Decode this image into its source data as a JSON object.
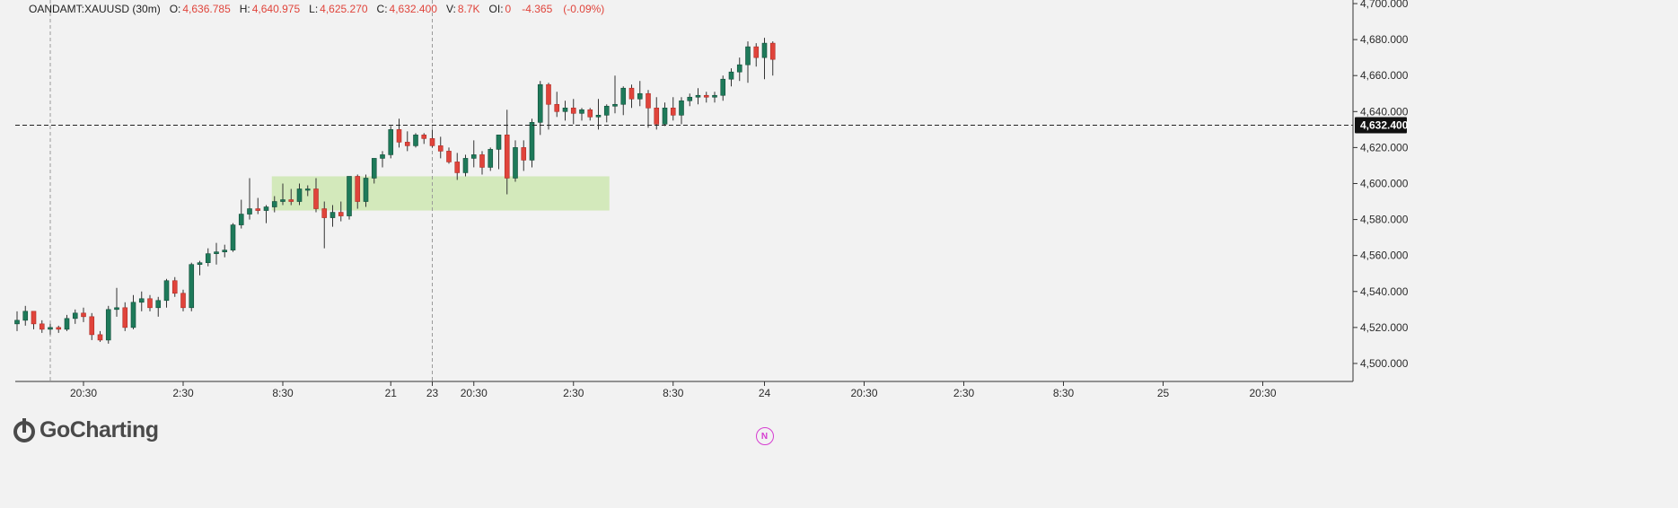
{
  "header": {
    "symbol": "OANDAMT:XAUUSD (30m)",
    "open_label": "O:",
    "open_value": "4,636.785",
    "high_label": "H:",
    "high_value": "4,640.975",
    "low_label": "L:",
    "low_value": "4,625.270",
    "close_label": "C:",
    "close_value": "4,632.400",
    "volume_label": "V:",
    "volume_value": "8.7K",
    "oi_label": "OI:",
    "oi_value": "0",
    "change_value": "-4.365",
    "change_pct": "(-0.09%)"
  },
  "logo": {
    "text": "GoCharting"
  },
  "last_price_label": "4,632.400",
  "event_marker": {
    "label": "N"
  },
  "colors": {
    "background": "#f2f2f2",
    "up": "#1e7a5a",
    "down": "#e0443b",
    "wick": "#333333",
    "zone": "#c8e6a8",
    "price_tag_bg": "#111111",
    "event_marker": "#d63dd1"
  },
  "chart_data": {
    "type": "candlestick",
    "title": "OANDAMT:XAUUSD (30m)",
    "ylim": [
      4490,
      4702
    ],
    "y_ticks": [
      "4,500.000",
      "4,520.000",
      "4,540.000",
      "4,560.000",
      "4,580.000",
      "4,600.000",
      "4,620.000",
      "4,640.000",
      "4,660.000",
      "4,680.000",
      "4,700.000"
    ],
    "y_tick_values": [
      4500,
      4520,
      4540,
      4560,
      4580,
      4600,
      4620,
      4640,
      4660,
      4680,
      4700
    ],
    "x_tick_labels": [
      "20:30",
      "2:30",
      "8:30",
      "21",
      "23",
      "20:30",
      "2:30",
      "8:30",
      "24",
      "20:30",
      "2:30",
      "8:30",
      "25",
      "20:30"
    ],
    "x_tick_index": [
      8,
      20,
      32,
      45,
      50,
      55,
      67,
      79,
      90,
      102,
      114,
      126,
      138,
      150
    ],
    "last_price": 4632.4,
    "demand_zone": {
      "start_index": 31,
      "end_index": 71,
      "low": 4585,
      "high": 4604
    },
    "vertical_markers_index": [
      4,
      50
    ],
    "event_marker_index": 90,
    "candles": [
      [
        4522,
        4529,
        4518,
        4524
      ],
      [
        4524,
        4532,
        4521,
        4529
      ],
      [
        4529,
        4528,
        4519,
        4522
      ],
      [
        4522,
        4524,
        4517,
        4519
      ],
      [
        4519,
        4522,
        4516,
        4520
      ],
      [
        4520,
        4521,
        4517,
        4519
      ],
      [
        4519,
        4527,
        4518,
        4525
      ],
      [
        4525,
        4530,
        4522,
        4528
      ],
      [
        4528,
        4531,
        4523,
        4526
      ],
      [
        4526,
        4528,
        4513,
        4516
      ],
      [
        4516,
        4518,
        4512,
        4513
      ],
      [
        4513,
        4532,
        4511,
        4530
      ],
      [
        4530,
        4542,
        4526,
        4531
      ],
      [
        4531,
        4534,
        4518,
        4520
      ],
      [
        4520,
        4538,
        4519,
        4534
      ],
      [
        4534,
        4540,
        4529,
        4536
      ],
      [
        4536,
        4538,
        4529,
        4531
      ],
      [
        4531,
        4537,
        4526,
        4535
      ],
      [
        4535,
        4547,
        4531,
        4546
      ],
      [
        4546,
        4548,
        4537,
        4539
      ],
      [
        4539,
        4541,
        4529,
        4531
      ],
      [
        4531,
        4556,
        4529,
        4555
      ],
      [
        4555,
        4557,
        4549,
        4556
      ],
      [
        4556,
        4564,
        4554,
        4561
      ],
      [
        4561,
        4567,
        4555,
        4562
      ],
      [
        4562,
        4566,
        4559,
        4563
      ],
      [
        4563,
        4578,
        4562,
        4577
      ],
      [
        4577,
        4591,
        4575,
        4583
      ],
      [
        4583,
        4603,
        4580,
        4586
      ],
      [
        4586,
        4592,
        4583,
        4585
      ],
      [
        4585,
        4588,
        4578,
        4587
      ],
      [
        4587,
        4593,
        4584,
        4590
      ],
      [
        4590,
        4600,
        4588,
        4591
      ],
      [
        4591,
        4597,
        4588,
        4590
      ],
      [
        4590,
        4600,
        4588,
        4597
      ],
      [
        4597,
        4599,
        4593,
        4597
      ],
      [
        4597,
        4603,
        4584,
        4586
      ],
      [
        4586,
        4590,
        4564,
        4581
      ],
      [
        4581,
        4588,
        4576,
        4584
      ],
      [
        4584,
        4590,
        4579,
        4582
      ],
      [
        4582,
        4604,
        4580,
        4604
      ],
      [
        4604,
        4605,
        4586,
        4590
      ],
      [
        4590,
        4605,
        4587,
        4603
      ],
      [
        4603,
        4614,
        4600,
        4614
      ],
      [
        4614,
        4618,
        4609,
        4616
      ],
      [
        4616,
        4632,
        4614,
        4630
      ],
      [
        4630,
        4636,
        4620,
        4623
      ],
      [
        4623,
        4629,
        4618,
        4621
      ],
      [
        4621,
        4628,
        4620,
        4627
      ],
      [
        4627,
        4628,
        4622,
        4625
      ],
      [
        4625,
        4630,
        4620,
        4621
      ],
      [
        4621,
        4626,
        4614,
        4618
      ],
      [
        4618,
        4620,
        4611,
        4612
      ],
      [
        4612,
        4617,
        4602,
        4606
      ],
      [
        4606,
        4616,
        4604,
        4614
      ],
      [
        4614,
        4624,
        4609,
        4616
      ],
      [
        4616,
        4618,
        4605,
        4609
      ],
      [
        4609,
        4620,
        4607,
        4619
      ],
      [
        4619,
        4627,
        4608,
        4627
      ],
      [
        4627,
        4641,
        4594,
        4603
      ],
      [
        4603,
        4624,
        4601,
        4620
      ],
      [
        4620,
        4624,
        4607,
        4613
      ],
      [
        4613,
        4636,
        4609,
        4634
      ],
      [
        4634,
        4657,
        4627,
        4655
      ],
      [
        4655,
        4656,
        4630,
        4644
      ],
      [
        4644,
        4651,
        4637,
        4640
      ],
      [
        4640,
        4646,
        4635,
        4642
      ],
      [
        4642,
        4647,
        4633,
        4639
      ],
      [
        4639,
        4642,
        4635,
        4641
      ],
      [
        4641,
        4642,
        4635,
        4637
      ],
      [
        4637,
        4647,
        4630,
        4638
      ],
      [
        4638,
        4644,
        4634,
        4643
      ],
      [
        4643,
        4660,
        4639,
        4644
      ],
      [
        4644,
        4654,
        4638,
        4653
      ],
      [
        4653,
        4655,
        4642,
        4647
      ],
      [
        4647,
        4657,
        4643,
        4650
      ],
      [
        4650,
        4652,
        4631,
        4642
      ],
      [
        4642,
        4648,
        4630,
        4633
      ],
      [
        4633,
        4645,
        4632,
        4642
      ],
      [
        4642,
        4648,
        4635,
        4638
      ],
      [
        4638,
        4648,
        4633,
        4646
      ],
      [
        4646,
        4650,
        4643,
        4648
      ],
      [
        4648,
        4653,
        4644,
        4649
      ],
      [
        4649,
        4651,
        4645,
        4648
      ],
      [
        4648,
        4651,
        4645,
        4649
      ],
      [
        4649,
        4660,
        4646,
        4658
      ],
      [
        4658,
        4664,
        4654,
        4662
      ],
      [
        4662,
        4670,
        4657,
        4666
      ],
      [
        4666,
        4679,
        4656,
        4676
      ],
      [
        4676,
        4678,
        4665,
        4670
      ],
      [
        4670,
        4681,
        4658,
        4678
      ],
      [
        4678,
        4679,
        4660,
        4669
      ]
    ]
  }
}
